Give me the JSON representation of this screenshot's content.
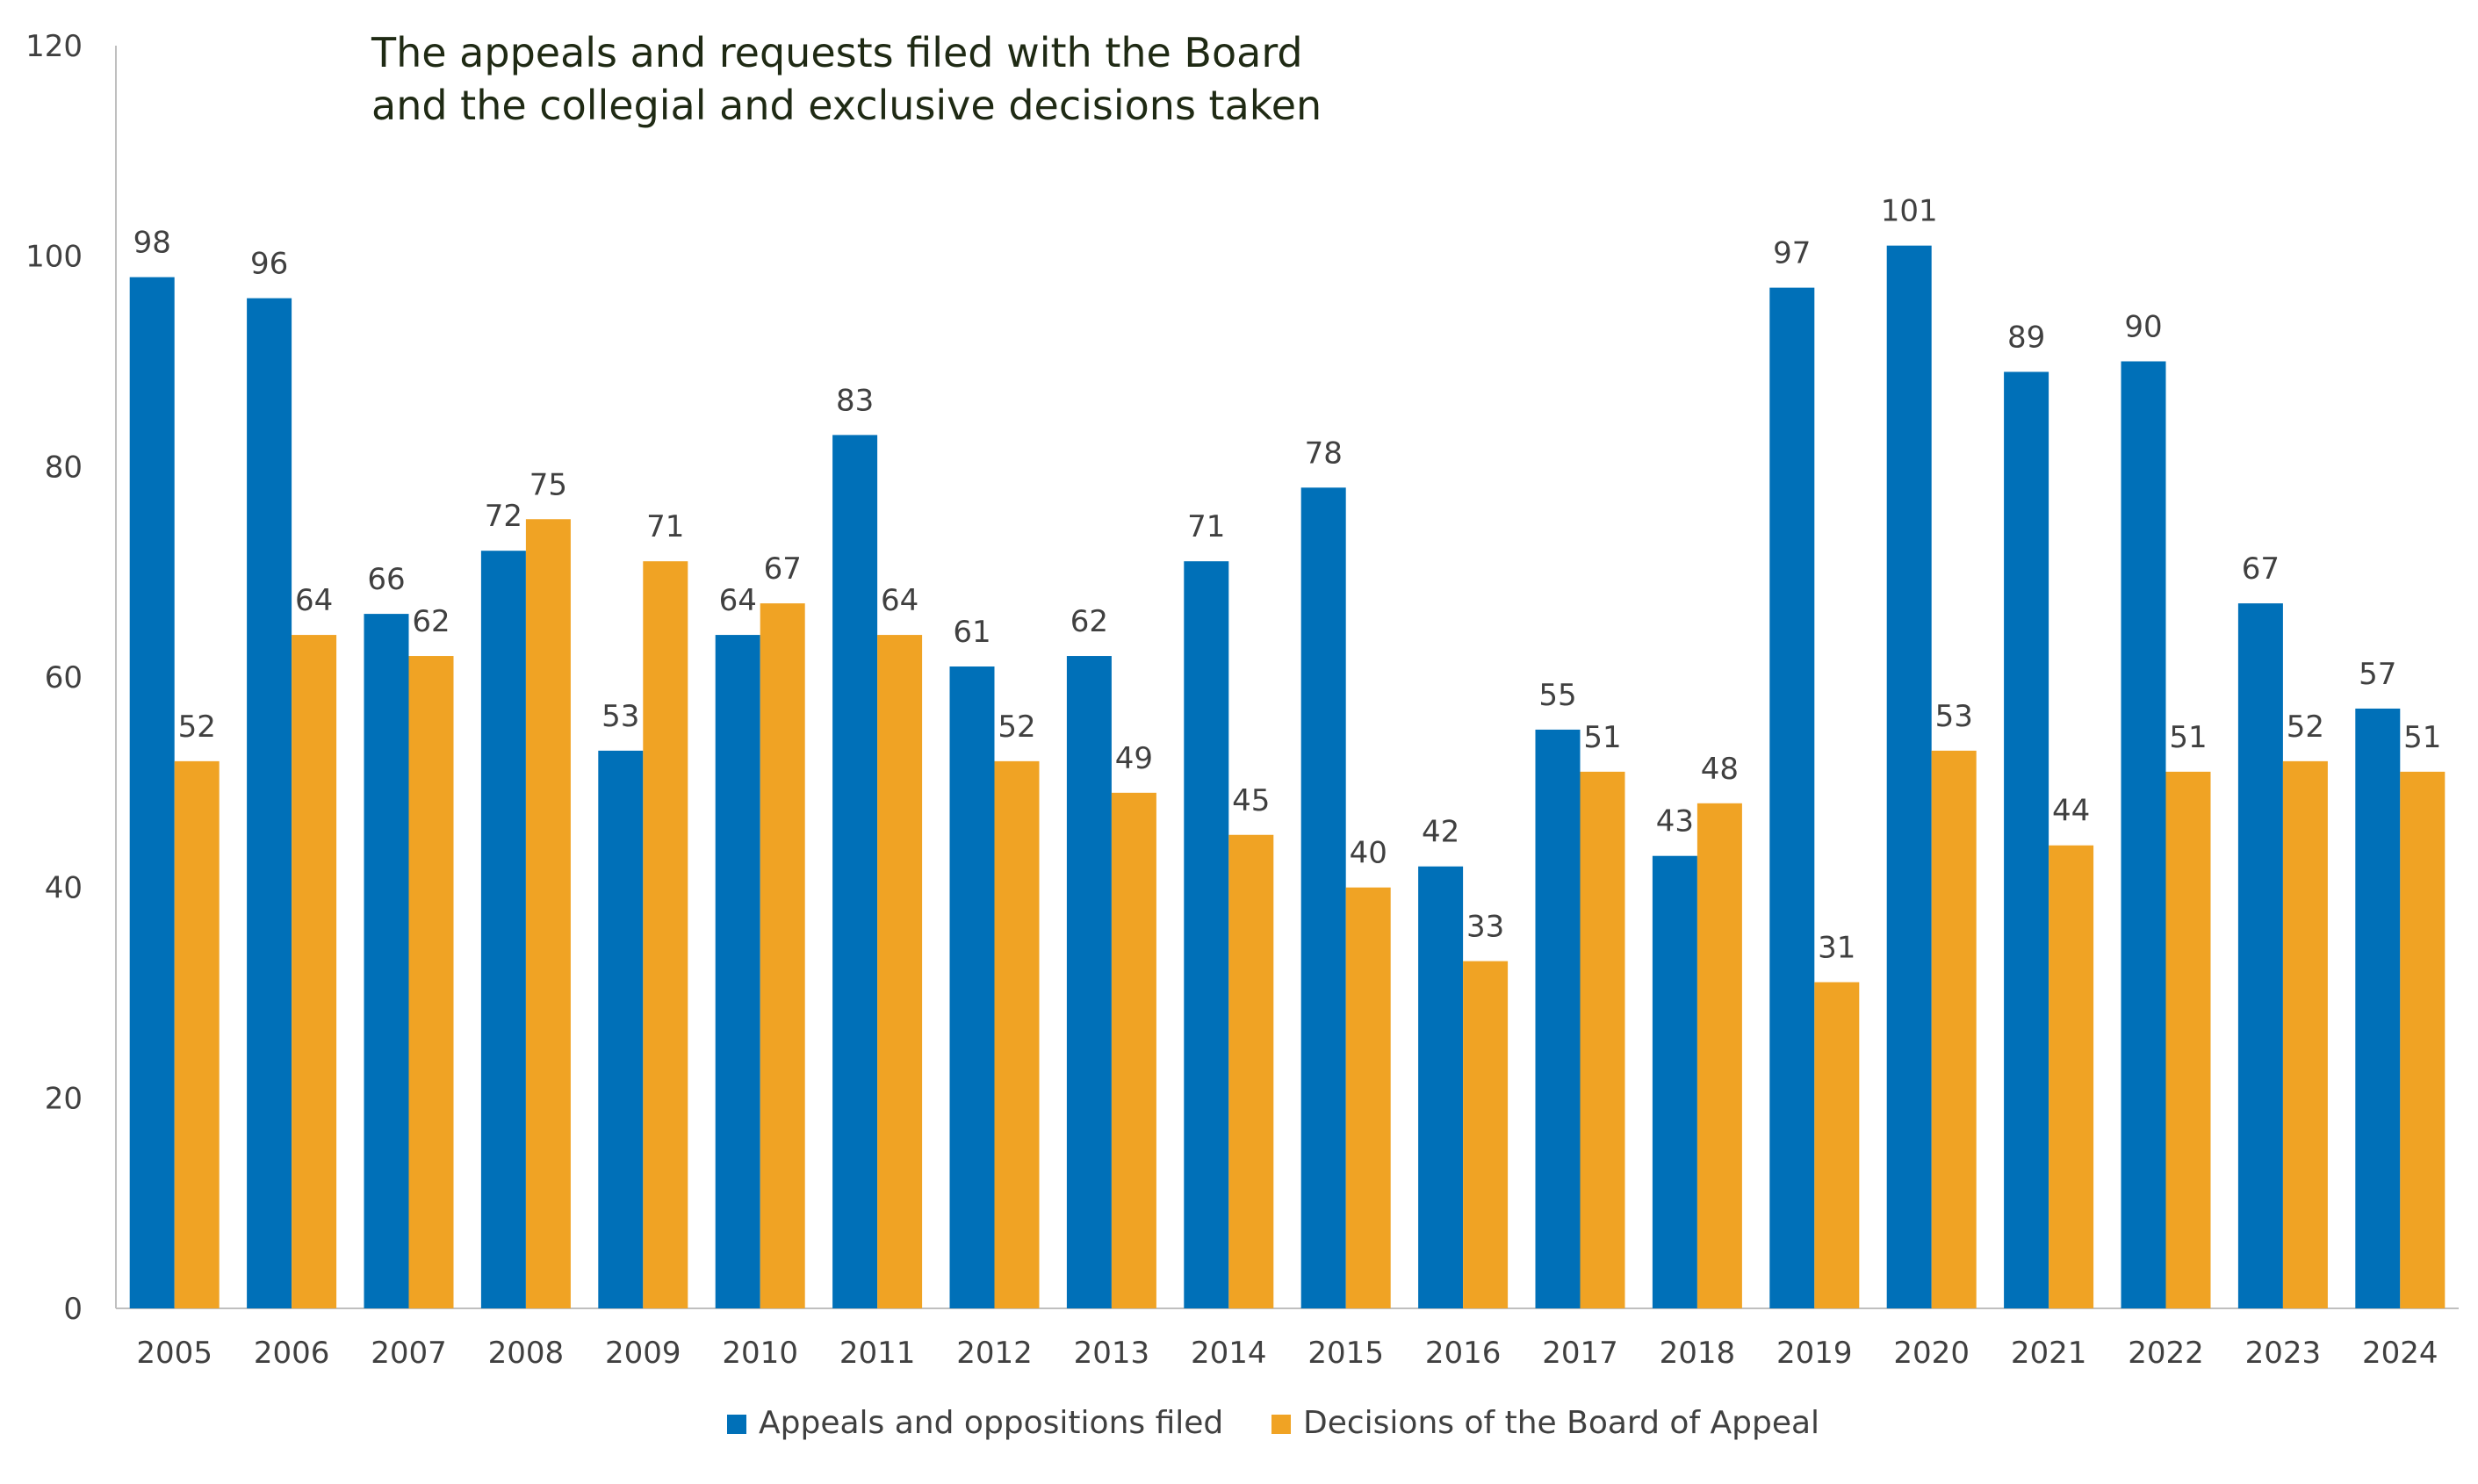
{
  "chart_data": {
    "type": "bar",
    "title_lines": [
      "The appeals and requests filed with the Board",
      "and the collegial and exclusive decisions taken"
    ],
    "categories": [
      "2005",
      "2006",
      "2007",
      "2008",
      "2009",
      "2010",
      "2011",
      "2012",
      "2013",
      "2014",
      "2015",
      "2016",
      "2017",
      "2018",
      "2019",
      "2020",
      "2021",
      "2022",
      "2023",
      "2024"
    ],
    "series": [
      {
        "name": "Appeals and oppositions filed",
        "color": "#0070b8",
        "values": [
          98,
          96,
          66,
          72,
          53,
          64,
          83,
          61,
          62,
          71,
          78,
          42,
          55,
          43,
          97,
          101,
          89,
          90,
          67,
          57
        ]
      },
      {
        "name": "Decisions of the Board of Appeal",
        "color": "#f0a324",
        "values": [
          52,
          64,
          62,
          75,
          71,
          67,
          64,
          52,
          49,
          45,
          40,
          33,
          51,
          48,
          31,
          53,
          44,
          51,
          52,
          51
        ]
      }
    ],
    "ylim": [
      0,
      120
    ],
    "yticks": [
      0,
      20,
      40,
      60,
      80,
      100,
      120
    ],
    "xlabel": "",
    "ylabel": "",
    "grid": false,
    "legend": "bottom-center"
  }
}
